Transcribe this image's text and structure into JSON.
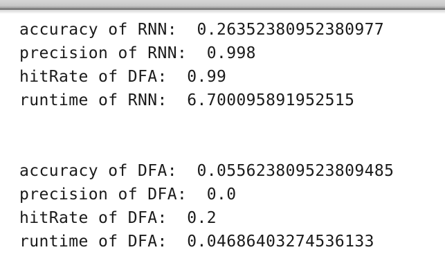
{
  "output": {
    "rnn": {
      "accuracy": "accuracy of RNN:  0.26352380952380977",
      "precision": "precision of RNN:  0.998",
      "hitrate": "hitRate of DFA:  0.99",
      "runtime": "runtime of RNN:  6.700095891952515"
    },
    "dfa": {
      "accuracy": "accuracy of DFA:  0.055623809523809485",
      "precision": "precision of DFA:  0.0",
      "hitrate": "hitRate of DFA:  0.2",
      "runtime": "runtime of DFA:  0.04686403274536133"
    }
  }
}
